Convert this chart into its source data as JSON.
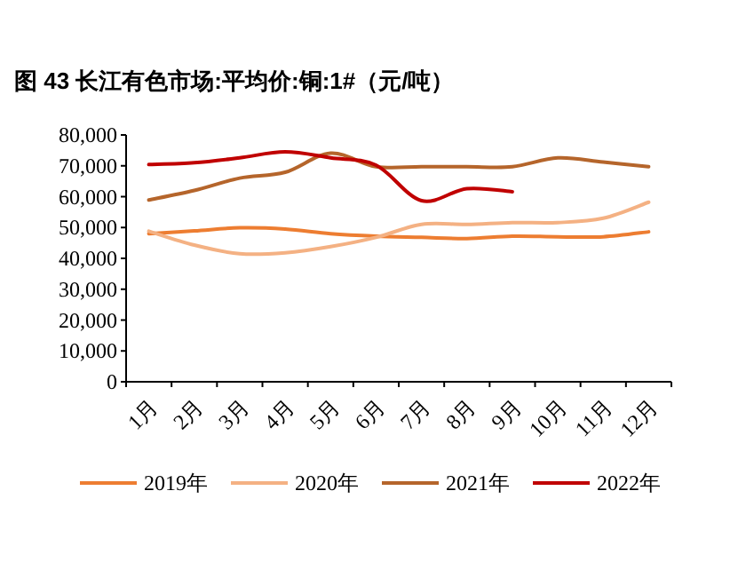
{
  "chart_data": {
    "type": "line",
    "title": "图 43 长江有色市场:平均价:铜:1#（元/吨）",
    "categories": [
      "1月",
      "2月",
      "3月",
      "4月",
      "5月",
      "6月",
      "7月",
      "8月",
      "9月",
      "10月",
      "11月",
      "12月"
    ],
    "series": [
      {
        "name": "2019年",
        "color": "#ed7d31",
        "values": [
          48000,
          48900,
          49900,
          49500,
          48000,
          47200,
          46800,
          46400,
          47200,
          47000,
          47000,
          48600
        ]
      },
      {
        "name": "2020年",
        "color": "#f4b183",
        "values": [
          48800,
          44300,
          41500,
          41800,
          43800,
          46800,
          51000,
          51000,
          51600,
          51600,
          53000,
          58200
        ]
      },
      {
        "name": "2021年",
        "color": "#b5652b",
        "values": [
          58900,
          62000,
          66000,
          67900,
          74100,
          69700,
          69700,
          69700,
          69700,
          72600,
          71200,
          69700
        ]
      },
      {
        "name": "2022年",
        "color": "#c00000",
        "values": [
          70400,
          71000,
          72600,
          74500,
          72600,
          70200,
          58700,
          62600,
          61600,
          null,
          null,
          null
        ]
      }
    ],
    "ylim": [
      0,
      80000
    ],
    "yticks": [
      0,
      {
        "value": 10000,
        "label": "10,000"
      },
      {
        "value": 20000,
        "label": "20,000"
      },
      {
        "value": 30000,
        "label": "30,000"
      },
      {
        "value": 40000,
        "label": "40,000"
      },
      {
        "value": 50000,
        "label": "50,000"
      },
      {
        "value": 60000,
        "label": "60,000"
      },
      {
        "value": 70000,
        "label": "70,000"
      },
      {
        "value": 80000,
        "label": "80,000"
      }
    ],
    "grid": false,
    "legend": "bottom"
  }
}
